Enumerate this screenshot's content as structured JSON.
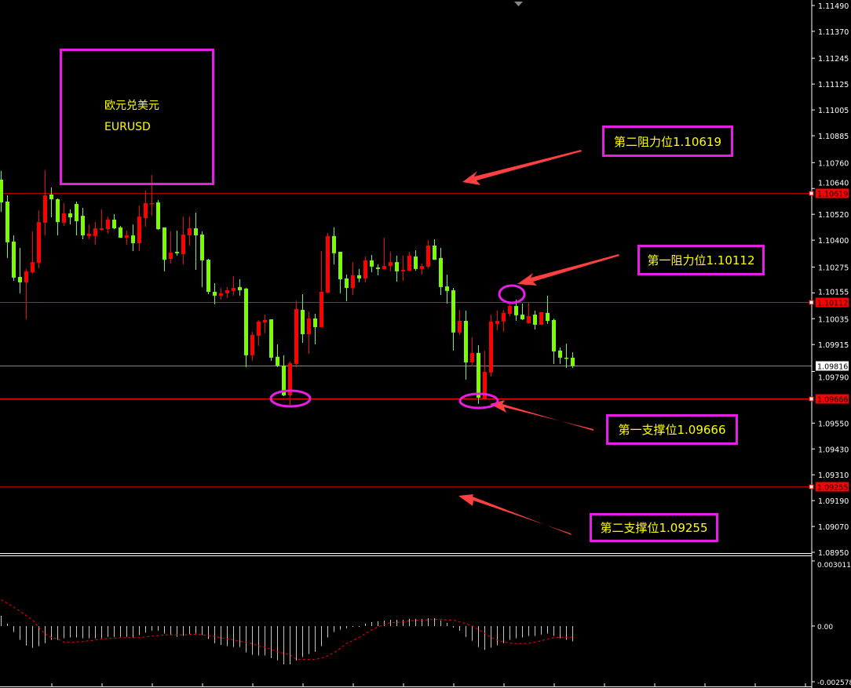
{
  "title_box": {
    "name_cn": "欧元兑美元",
    "symbol": "EURUSD"
  },
  "annotations": {
    "resistance_2": "第二阻力位1.10619",
    "resistance_1": "第一阻力位1.10112",
    "support_1": "第一支撑位1.09666",
    "support_2": "第二支撑位1.09255"
  },
  "colors": {
    "background": "#000000",
    "bull_candle": "#ff0000",
    "bear_candle": "#7cfc00",
    "level_line": "#ff0000",
    "annotation_border": "#e61ee6",
    "annotation_text": "#ffff00",
    "arrow": "#ff4040",
    "macd_histogram": "#c8c8c8",
    "macd_signal": "#ff0000",
    "axis_text": "#ffffff"
  },
  "chart_data": [
    {
      "type": "candlestick",
      "symbol": "EURUSD",
      "ylim": [
        1.0895,
        1.1149
      ],
      "y_ticks": [
        "1.11490",
        "1.11370",
        "1.11245",
        "1.11125",
        "1.11005",
        "1.10885",
        "1.10760",
        "1.10640",
        "1.10520",
        "1.10400",
        "1.10275",
        "1.10155",
        "1.10035",
        "1.09915",
        "1.09790",
        "1.09550",
        "1.09430",
        "1.09310",
        "1.09190",
        "1.09070",
        "1.08950"
      ],
      "y_tick_values": [
        1.1149,
        1.1137,
        1.11245,
        1.11125,
        1.11005,
        1.10885,
        1.1076,
        1.1064,
        1.1052,
        1.104,
        1.10275,
        1.10155,
        1.10035,
        1.09915,
        1.0979,
        1.0955,
        1.0943,
        1.0931,
        1.0919,
        1.0907,
        1.0895
      ],
      "current_price": {
        "label": "1.09816",
        "value": 1.09816
      },
      "levels": [
        {
          "label": "1.10619",
          "value": 1.10619,
          "kind": "resistance"
        },
        {
          "label": "1.10112",
          "value": 1.10112,
          "kind": "resistance"
        },
        {
          "label": "1.09666",
          "value": 1.09666,
          "kind": "support"
        },
        {
          "label": "1.09255",
          "value": 1.09255,
          "kind": "support"
        }
      ],
      "ohlc_fields": [
        "open",
        "high",
        "low",
        "close"
      ],
      "candles": [
        [
          1.10681,
          1.10721,
          1.10532,
          1.10575
        ],
        [
          1.10579,
          1.10608,
          1.10317,
          1.1039
        ],
        [
          1.10393,
          1.10422,
          1.10211,
          1.10226
        ],
        [
          1.10229,
          1.10364,
          1.10153,
          1.10204
        ],
        [
          1.10204,
          1.10266,
          1.10032,
          1.10255
        ],
        [
          1.10251,
          1.10441,
          1.10244,
          1.10298
        ],
        [
          1.10295,
          1.10539,
          1.10269,
          1.10484
        ],
        [
          1.10481,
          1.10725,
          1.10422,
          1.10608
        ],
        [
          1.10612,
          1.10645,
          1.10506,
          1.1059
        ],
        [
          1.1059,
          1.10594,
          1.10422,
          1.10484
        ],
        [
          1.10481,
          1.10572,
          1.10466,
          1.10524
        ],
        [
          1.10524,
          1.10543,
          1.10473,
          1.10506
        ],
        [
          1.10568,
          1.10579,
          1.10422,
          1.10488
        ],
        [
          1.10513,
          1.1055,
          1.10404,
          1.10422
        ],
        [
          1.10419,
          1.10473,
          1.10404,
          1.1043
        ],
        [
          1.10419,
          1.10484,
          1.10379,
          1.10455
        ],
        [
          1.10448,
          1.10543,
          1.10444,
          1.10455
        ],
        [
          1.10451,
          1.1051,
          1.1043,
          1.10495
        ],
        [
          1.10495,
          1.10521,
          1.10451,
          1.10455
        ],
        [
          1.10459,
          1.10466,
          1.10411,
          1.10411
        ],
        [
          1.10411,
          1.10444,
          1.10379,
          1.10422
        ],
        [
          1.10422,
          1.10473,
          1.10349,
          1.10386
        ],
        [
          1.10386,
          1.10561,
          1.10349,
          1.1051
        ],
        [
          1.10502,
          1.1063,
          1.10462,
          1.10572
        ],
        [
          1.10568,
          1.10703,
          1.10513,
          1.10572
        ],
        [
          1.10575,
          1.10586,
          1.10448,
          1.10451
        ],
        [
          1.10459,
          1.10459,
          1.10255,
          1.10309
        ],
        [
          1.10313,
          1.10441,
          1.10291,
          1.10342
        ],
        [
          1.10346,
          1.10444,
          1.10328,
          1.10339
        ],
        [
          1.10335,
          1.1051,
          1.10287,
          1.10426
        ],
        [
          1.10422,
          1.1051,
          1.10375,
          1.10455
        ],
        [
          1.10455,
          1.10528,
          1.10262,
          1.10422
        ],
        [
          1.10426,
          1.10441,
          1.10182,
          1.10306
        ],
        [
          1.10309,
          1.10313,
          1.10149,
          1.1016
        ],
        [
          1.1016,
          1.102,
          1.10102,
          1.10142
        ],
        [
          1.10142,
          1.10178,
          1.10124,
          1.10153
        ],
        [
          1.10153,
          1.10182,
          1.10131,
          1.10167
        ],
        [
          1.10164,
          1.10233,
          1.10142,
          1.10178
        ],
        [
          1.10182,
          1.10218,
          1.10142,
          1.10167
        ],
        [
          1.10175,
          1.10178,
          1.0981,
          1.09865
        ],
        [
          1.09865,
          1.09974,
          1.09839,
          1.0996
        ],
        [
          1.09956,
          1.10029,
          1.09909,
          1.10022
        ],
        [
          1.10018,
          1.10054,
          1.09967,
          1.10029
        ],
        [
          1.10032,
          1.10032,
          1.09839,
          1.09854
        ],
        [
          1.09858,
          1.09916,
          1.0981,
          1.09817
        ],
        [
          1.09817,
          1.09865,
          1.09675,
          1.09679
        ],
        [
          1.09679,
          1.09836,
          1.09628,
          1.09828
        ],
        [
          1.09825,
          1.1012,
          1.0981,
          1.1008
        ],
        [
          1.10076,
          1.10149,
          1.09923,
          1.09963
        ],
        [
          1.09963,
          1.10069,
          1.09872,
          1.10036
        ],
        [
          1.10036,
          1.10058,
          1.09916,
          1.09996
        ],
        [
          1.09996,
          1.10349,
          1.09996,
          1.1016
        ],
        [
          1.10156,
          1.10433,
          1.10153,
          1.10419
        ],
        [
          1.10419,
          1.10459,
          1.10287,
          1.10339
        ],
        [
          1.10346,
          1.10346,
          1.10153,
          1.10218
        ],
        [
          1.10222,
          1.1024,
          1.10116,
          1.10178
        ],
        [
          1.10178,
          1.10298,
          1.10145,
          1.10237
        ],
        [
          1.10237,
          1.10266,
          1.10204,
          1.10222
        ],
        [
          1.10222,
          1.10324,
          1.10204,
          1.10306
        ],
        [
          1.10306,
          1.10331,
          1.10251,
          1.10277
        ],
        [
          1.10273,
          1.10287,
          1.10237,
          1.10266
        ],
        [
          1.10266,
          1.10411,
          1.10266,
          1.1028
        ],
        [
          1.1028,
          1.10346,
          1.10255,
          1.10298
        ],
        [
          1.10298,
          1.10328,
          1.10207,
          1.10255
        ],
        [
          1.10255,
          1.10328,
          1.10211,
          1.10262
        ],
        [
          1.10258,
          1.10346,
          1.10255,
          1.10328
        ],
        [
          1.10324,
          1.10353,
          1.10258,
          1.10266
        ],
        [
          1.10266,
          1.10291,
          1.1024,
          1.1028
        ],
        [
          1.10277,
          1.104,
          1.10269,
          1.10375
        ],
        [
          1.10375,
          1.10404,
          1.10309,
          1.10309
        ],
        [
          1.10317,
          1.10364,
          1.10145,
          1.10182
        ],
        [
          1.10185,
          1.1024,
          1.10105,
          1.10164
        ],
        [
          1.10167,
          1.10178,
          1.09887,
          1.09971
        ],
        [
          1.09971,
          1.10076,
          1.0996,
          1.10025
        ],
        [
          1.10025,
          1.10073,
          1.09752,
          1.09832
        ],
        [
          1.09832,
          1.09949,
          1.09814,
          1.09876
        ],
        [
          1.09876,
          1.09912,
          1.09639,
          1.09668
        ],
        [
          1.09661,
          1.09887,
          1.09661,
          1.09788
        ],
        [
          1.09785,
          1.10054,
          1.09766,
          1.10022
        ],
        [
          1.10011,
          1.10073,
          1.09981,
          1.10025
        ],
        [
          1.10022,
          1.10076,
          1.09974,
          1.10062
        ],
        [
          1.10058,
          1.10102,
          1.10047,
          1.10094
        ],
        [
          1.10094,
          1.10124,
          1.10025,
          1.10051
        ],
        [
          1.10054,
          1.10105,
          1.10029,
          1.10032
        ],
        [
          1.10014,
          1.10113,
          1.10011,
          1.10047
        ],
        [
          1.10054,
          1.10073,
          1.09985,
          1.10007
        ],
        [
          1.10007,
          1.10065,
          1.10007,
          1.10065
        ],
        [
          1.10062,
          1.10142,
          1.10011,
          1.10025
        ],
        [
          1.10029,
          1.10036,
          1.09825,
          1.09883
        ],
        [
          1.09887,
          1.09901,
          1.09825,
          1.09854
        ],
        [
          1.09854,
          1.09919,
          1.09806,
          1.0985
        ],
        [
          1.09854,
          1.09879,
          1.09806,
          1.09816
        ]
      ]
    },
    {
      "type": "bar",
      "indicator": "MACD",
      "ylim": [
        -0.002578,
        0.003011
      ],
      "y_ticks": [
        "0.003011",
        "0.00",
        "-0.002578"
      ],
      "y_tick_values": [
        0.003011,
        0,
        -0.002578
      ],
      "histogram": [
        0.00047,
        0.00011,
        -0.00028,
        -0.00064,
        -0.0009,
        -0.00101,
        -0.00093,
        -0.00079,
        -0.00064,
        -0.00064,
        -0.00057,
        -0.00053,
        -0.00053,
        -0.00057,
        -0.00057,
        -0.00057,
        -0.00057,
        -0.0005,
        -0.0005,
        -0.0005,
        -0.0005,
        -0.00053,
        -0.00042,
        -0.00031,
        -0.00021,
        -0.00021,
        -0.00035,
        -0.00042,
        -0.0005,
        -0.00046,
        -0.00039,
        -0.00035,
        -0.00042,
        -0.0006,
        -0.00079,
        -0.00087,
        -0.00093,
        -0.00097,
        -0.00097,
        -0.00122,
        -0.00133,
        -0.00136,
        -0.00136,
        -0.00148,
        -0.00159,
        -0.00177,
        -0.00177,
        -0.0016,
        -0.00144,
        -0.0013,
        -0.00119,
        -0.00093,
        -0.00053,
        -0.00028,
        -0.00017,
        -0.0001,
        -4e-05,
        -4e-05,
        0.00011,
        0.00018,
        0.00022,
        0.00025,
        0.00029,
        0.00029,
        0.00029,
        0.00033,
        0.00033,
        0.00033,
        0.00036,
        0.00036,
        0.00025,
        0.00014,
        -7e-05,
        -0.00022,
        -0.0005,
        -0.00068,
        -0.00097,
        -0.00111,
        -0.001,
        -0.00089,
        -0.00079,
        -0.00064,
        -0.00057,
        -0.00053,
        -0.00046,
        -0.00046,
        -0.00039,
        -0.00035,
        -0.00046,
        -0.00057,
        -0.00064,
        -0.00071
      ],
      "signal": [
        0.00121,
        0.00105,
        0.00087,
        0.00068,
        0.00048,
        0.00028,
        -7e-05,
        -0.00037,
        -0.00053,
        -0.0006,
        -0.00074,
        -0.00076,
        -0.00074,
        -0.00072,
        -0.00068,
        -0.00065,
        -0.0006,
        -0.00058,
        -0.00056,
        -0.00054,
        -0.00054,
        -0.00054,
        -0.00054,
        -0.0005,
        -0.00047,
        -0.00044,
        -0.00041,
        -0.00041,
        -0.00041,
        -0.00041,
        -0.00039,
        -0.00038,
        -0.00041,
        -0.00044,
        -0.00048,
        -0.00054,
        -0.0006,
        -0.00065,
        -0.00071,
        -0.00076,
        -0.00081,
        -0.00093,
        -0.00098,
        -0.00108,
        -0.0012,
        -0.00125,
        -0.00133,
        -0.00154,
        -0.00154,
        -0.00154,
        -0.00154,
        -0.00149,
        -0.00138,
        -0.00123,
        -0.00104,
        -0.0008,
        -0.00068,
        -0.00053,
        -0.00035,
        -0.00018,
        -4e-05,
        7e-05,
        0.00016,
        0.00017,
        0.0002,
        0.00023,
        0.00026,
        0.00028,
        0.00029,
        0.0003,
        0.0003,
        0.00028,
        0.00027,
        0.00019,
        0.00012,
        0,
        -0.00016,
        -0.00034,
        -0.00053,
        -0.00065,
        -0.00074,
        -0.00079,
        -0.00081,
        -0.00081,
        -0.0008,
        -0.00075,
        -0.00068,
        -0.00061,
        -0.00054,
        -0.00052,
        -0.00052,
        -0.00052
      ]
    }
  ]
}
